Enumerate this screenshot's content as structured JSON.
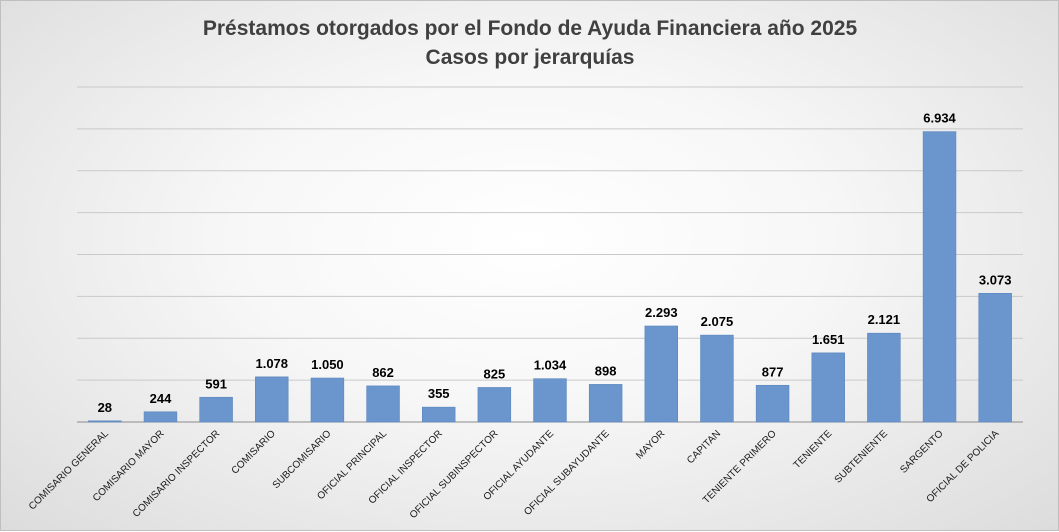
{
  "chart_data": {
    "type": "bar",
    "title": "Préstamos otorgados por el Fondo de Ayuda Financiera año 2025",
    "subtitle": "Casos por jerarquías",
    "xlabel": "",
    "ylabel": "",
    "categories": [
      "COMISARIO GENERAL",
      "COMISARIO MAYOR",
      "COMISARIO INSPECTOR",
      "COMISARIO",
      "SUBCOMISARIO",
      "OFICIAL PRINCIPAL",
      "OFICIAL INSPECTOR",
      "OFICIAL SUBINSPECTOR",
      "OFICIAL AYUDANTE",
      "OFICIAL SUBAYUDANTE",
      "MAYOR",
      "CAPITAN",
      "TENIENTE PRIMERO",
      "TENIENTE",
      "SUBTENIENTE",
      "SARGENTO",
      "OFICIAL DE POLICIA"
    ],
    "values": [
      28,
      244,
      591,
      1078,
      1050,
      862,
      355,
      825,
      1034,
      898,
      2293,
      2075,
      877,
      1651,
      2121,
      6934,
      3073
    ],
    "value_labels": [
      "28",
      "244",
      "591",
      "1.078",
      "1.050",
      "862",
      "355",
      "825",
      "1.034",
      "898",
      "2.293",
      "2.075",
      "877",
      "1.651",
      "2.121",
      "6.934",
      "3.073"
    ],
    "ylim": [
      0,
      8000
    ],
    "y_grid_step": 1000,
    "grid": true,
    "y_tick_labels_visible": false,
    "legend": "none",
    "colors": {
      "bar": "#6a96cd",
      "bar_edge": "#5a86bd",
      "grid": "#c9c9c9",
      "axis": "#8c8c8c"
    }
  }
}
